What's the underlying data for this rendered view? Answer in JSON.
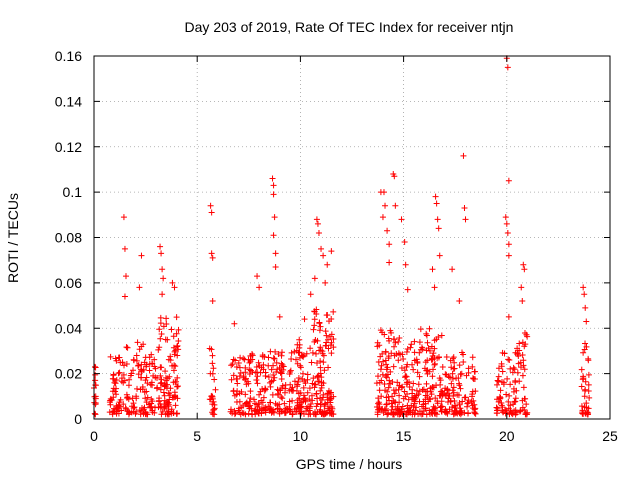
{
  "chart_data": {
    "type": "scatter",
    "title": "Day 203 of 2019, Rate Of TEC Index for receiver ntjn",
    "xlabel": "GPS time / hours",
    "ylabel": "ROTI / TECUs",
    "xlim": [
      0,
      25
    ],
    "ylim": [
      0,
      0.16
    ],
    "grid": true,
    "marker": "+",
    "color": "#ff0000",
    "x_ticks": [
      0,
      5,
      10,
      15,
      20,
      25
    ],
    "x_tick_labels": [
      "0",
      "5",
      "10",
      "15",
      "20",
      "25"
    ],
    "y_ticks": [
      0,
      0.02,
      0.04,
      0.06,
      0.08,
      0.1,
      0.12,
      0.14,
      0.16
    ],
    "y_tick_labels": [
      "0",
      "0.02",
      "0.04",
      "0.06",
      "0.08",
      "0.1",
      "0.12",
      "0.14",
      "0.16"
    ],
    "clusters": [
      {
        "x": [
          0.0,
          0.1
        ],
        "y_max": 0.024,
        "n": 14
      },
      {
        "x": [
          0.75,
          1.5
        ],
        "y_max": 0.028,
        "n": 55
      },
      {
        "x": [
          1.5,
          2.5
        ],
        "y_max": 0.035,
        "n": 65
      },
      {
        "x": [
          2.5,
          3.1
        ],
        "y_max": 0.032,
        "n": 40
      },
      {
        "x": [
          3.1,
          3.6
        ],
        "y_max": 0.045,
        "n": 55
      },
      {
        "x": [
          3.6,
          4.1
        ],
        "y_max": 0.045,
        "n": 55
      },
      {
        "x": [
          5.6,
          5.9
        ],
        "y_max": 0.035,
        "n": 25
      },
      {
        "x": [
          6.6,
          7.6
        ],
        "y_max": 0.028,
        "n": 70
      },
      {
        "x": [
          7.6,
          8.6
        ],
        "y_max": 0.03,
        "n": 70
      },
      {
        "x": [
          8.6,
          9.7
        ],
        "y_max": 0.03,
        "n": 80
      },
      {
        "x": [
          9.7,
          10.6
        ],
        "y_max": 0.035,
        "n": 80
      },
      {
        "x": [
          10.6,
          11.6
        ],
        "y_max": 0.05,
        "n": 120
      },
      {
        "x": [
          13.7,
          14.8
        ],
        "y_max": 0.04,
        "n": 110
      },
      {
        "x": [
          14.8,
          15.8
        ],
        "y_max": 0.035,
        "n": 90
      },
      {
        "x": [
          15.8,
          16.9
        ],
        "y_max": 0.04,
        "n": 100
      },
      {
        "x": [
          16.9,
          18.5
        ],
        "y_max": 0.03,
        "n": 110
      },
      {
        "x": [
          19.5,
          20.4
        ],
        "y_max": 0.03,
        "n": 60
      },
      {
        "x": [
          20.4,
          21.0
        ],
        "y_max": 0.04,
        "n": 45
      },
      {
        "x": [
          23.6,
          24.0
        ],
        "y_max": 0.035,
        "n": 35
      }
    ],
    "outliers": [
      {
        "x": 0.05,
        "y": 0.023
      },
      {
        "x": 1.45,
        "y": 0.089
      },
      {
        "x": 1.5,
        "y": 0.075
      },
      {
        "x": 1.55,
        "y": 0.063
      },
      {
        "x": 1.5,
        "y": 0.054
      },
      {
        "x": 2.2,
        "y": 0.058
      },
      {
        "x": 2.3,
        "y": 0.072
      },
      {
        "x": 3.2,
        "y": 0.076
      },
      {
        "x": 3.25,
        "y": 0.073
      },
      {
        "x": 3.3,
        "y": 0.066
      },
      {
        "x": 3.35,
        "y": 0.062
      },
      {
        "x": 3.3,
        "y": 0.055
      },
      {
        "x": 3.8,
        "y": 0.06
      },
      {
        "x": 3.9,
        "y": 0.058
      },
      {
        "x": 5.65,
        "y": 0.094
      },
      {
        "x": 5.7,
        "y": 0.091
      },
      {
        "x": 5.7,
        "y": 0.073
      },
      {
        "x": 5.75,
        "y": 0.071
      },
      {
        "x": 5.75,
        "y": 0.052
      },
      {
        "x": 6.8,
        "y": 0.042
      },
      {
        "x": 7.9,
        "y": 0.063
      },
      {
        "x": 8.0,
        "y": 0.058
      },
      {
        "x": 8.65,
        "y": 0.106
      },
      {
        "x": 8.7,
        "y": 0.103
      },
      {
        "x": 8.7,
        "y": 0.099
      },
      {
        "x": 8.75,
        "y": 0.089
      },
      {
        "x": 8.7,
        "y": 0.081
      },
      {
        "x": 8.8,
        "y": 0.073
      },
      {
        "x": 8.8,
        "y": 0.067
      },
      {
        "x": 9.0,
        "y": 0.045
      },
      {
        "x": 10.2,
        "y": 0.044
      },
      {
        "x": 10.8,
        "y": 0.088
      },
      {
        "x": 10.85,
        "y": 0.086
      },
      {
        "x": 10.9,
        "y": 0.082
      },
      {
        "x": 11.0,
        "y": 0.075
      },
      {
        "x": 11.1,
        "y": 0.072
      },
      {
        "x": 11.3,
        "y": 0.068
      },
      {
        "x": 11.5,
        "y": 0.074
      },
      {
        "x": 10.7,
        "y": 0.062
      },
      {
        "x": 11.2,
        "y": 0.06
      },
      {
        "x": 10.5,
        "y": 0.055
      },
      {
        "x": 13.9,
        "y": 0.1
      },
      {
        "x": 14.05,
        "y": 0.1
      },
      {
        "x": 14.1,
        "y": 0.094
      },
      {
        "x": 14.0,
        "y": 0.089
      },
      {
        "x": 14.2,
        "y": 0.083
      },
      {
        "x": 14.3,
        "y": 0.077
      },
      {
        "x": 14.3,
        "y": 0.069
      },
      {
        "x": 14.5,
        "y": 0.108
      },
      {
        "x": 14.55,
        "y": 0.107
      },
      {
        "x": 14.6,
        "y": 0.094
      },
      {
        "x": 14.9,
        "y": 0.088
      },
      {
        "x": 15.05,
        "y": 0.078
      },
      {
        "x": 15.1,
        "y": 0.068
      },
      {
        "x": 15.2,
        "y": 0.057
      },
      {
        "x": 16.55,
        "y": 0.098
      },
      {
        "x": 16.6,
        "y": 0.095
      },
      {
        "x": 16.65,
        "y": 0.088
      },
      {
        "x": 16.7,
        "y": 0.084
      },
      {
        "x": 16.75,
        "y": 0.072
      },
      {
        "x": 16.4,
        "y": 0.066
      },
      {
        "x": 16.5,
        "y": 0.058
      },
      {
        "x": 17.35,
        "y": 0.066
      },
      {
        "x": 17.9,
        "y": 0.116
      },
      {
        "x": 17.95,
        "y": 0.093
      },
      {
        "x": 18.0,
        "y": 0.088
      },
      {
        "x": 17.7,
        "y": 0.052
      },
      {
        "x": 20.0,
        "y": 0.159
      },
      {
        "x": 20.05,
        "y": 0.155
      },
      {
        "x": 20.1,
        "y": 0.105
      },
      {
        "x": 19.95,
        "y": 0.089
      },
      {
        "x": 20.0,
        "y": 0.086
      },
      {
        "x": 20.05,
        "y": 0.082
      },
      {
        "x": 20.1,
        "y": 0.077
      },
      {
        "x": 20.1,
        "y": 0.072
      },
      {
        "x": 20.8,
        "y": 0.068
      },
      {
        "x": 20.85,
        "y": 0.066
      },
      {
        "x": 20.7,
        "y": 0.058
      },
      {
        "x": 20.75,
        "y": 0.052
      },
      {
        "x": 20.1,
        "y": 0.045
      },
      {
        "x": 23.7,
        "y": 0.058
      },
      {
        "x": 23.75,
        "y": 0.055
      },
      {
        "x": 23.8,
        "y": 0.049
      },
      {
        "x": 23.85,
        "y": 0.043
      }
    ]
  }
}
